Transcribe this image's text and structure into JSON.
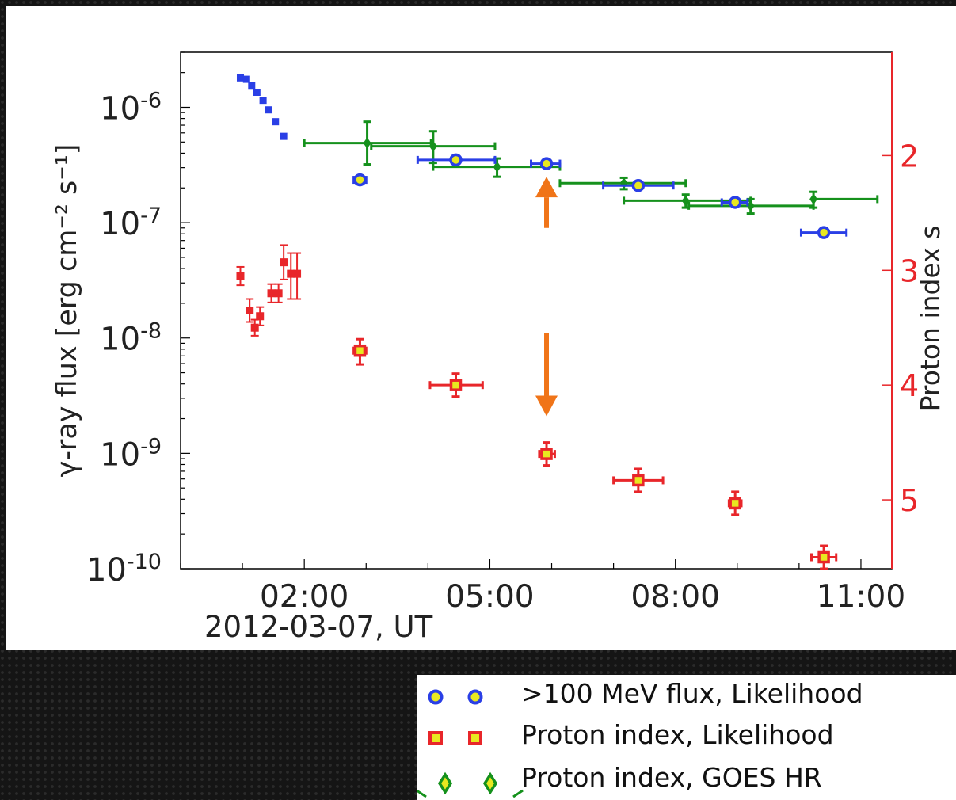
{
  "chart_data": {
    "type": "scatter",
    "title": "",
    "xlabel": "2012-03-07, UT",
    "ylabel": "γ-ray flux [erg cm⁻² s⁻¹]",
    "ylabel_right": "Proton index s",
    "x_ticks": [
      "02:00",
      "05:00",
      "08:00",
      "11:00"
    ],
    "xlim": [
      "2012-03-07T00:00",
      "2012-03-07T11:30"
    ],
    "y_log_ticks": [
      -6,
      -7,
      -8,
      -9,
      -10
    ],
    "ylim": [
      1e-10,
      3e-06
    ],
    "y_right_ticks": [
      "2",
      "3",
      "4",
      "5"
    ],
    "y_right_lim": [
      5.6,
      1.1
    ],
    "colors": {
      "blue": "#2a3fe6",
      "red": "#e8262a",
      "green": "#15911c",
      "orange": "#f07418",
      "yellow": "#e8e820"
    },
    "series": [
      {
        "key": "blue_early",
        "points": [
          {
            "t": "2012-03-07T00:58",
            "y": 1.8e-06
          },
          {
            "t": "2012-03-07T01:04",
            "y": 1.75e-06
          },
          {
            "t": "2012-03-07T01:09",
            "y": 1.55e-06
          },
          {
            "t": "2012-03-07T01:14",
            "y": 1.35e-06
          },
          {
            "t": "2012-03-07T01:20",
            "y": 1.15e-06
          },
          {
            "t": "2012-03-07T01:25",
            "y": 9.5e-07
          },
          {
            "t": "2012-03-07T01:32",
            "y": 7.5e-07
          },
          {
            "t": "2012-03-07T01:40",
            "y": 5.6e-07
          }
        ]
      },
      {
        "name": ">100 MeV flux, Likelihood",
        "key": "blue_circles",
        "points": [
          {
            "t": "2012-03-07T02:54",
            "y": 2.35e-07,
            "t0": "2012-03-07T02:48",
            "t1": "2012-03-07T03:00"
          },
          {
            "t": "2012-03-07T04:27",
            "y": 3.5e-07,
            "t0": "2012-03-07T03:50",
            "t1": "2012-03-07T05:05"
          },
          {
            "t": "2012-03-07T05:55",
            "y": 3.25e-07,
            "t0": "2012-03-07T05:40",
            "t1": "2012-03-07T06:08"
          },
          {
            "t": "2012-03-07T07:24",
            "y": 2.1e-07,
            "t0": "2012-03-07T06:50",
            "t1": "2012-03-07T07:58"
          },
          {
            "t": "2012-03-07T08:58",
            "y": 1.5e-07,
            "t0": "2012-03-07T08:45",
            "t1": "2012-03-07T09:10"
          },
          {
            "t": "2012-03-07T10:24",
            "y": 8.2e-08,
            "t0": "2012-03-07T10:02",
            "t1": "2012-03-07T10:46"
          }
        ]
      },
      {
        "key": "green_bins",
        "points": [
          {
            "t": "2012-03-07T03:01",
            "y": 4.9e-07,
            "t0": "2012-03-07T02:00",
            "t1": "2012-03-07T04:03",
            "ylo": 3.2e-07,
            "yhi": 7.5e-07
          },
          {
            "t": "2012-03-07T04:05",
            "y": 4.6e-07,
            "t0": "2012-03-07T03:05",
            "t1": "2012-03-07T05:05",
            "ylo": 3.3e-07,
            "yhi": 6.2e-07
          },
          {
            "t": "2012-03-07T05:07",
            "y": 3.05e-07,
            "t0": "2012-03-07T04:05",
            "t1": "2012-03-07T06:08",
            "ylo": 2.5e-07,
            "yhi": 3.6e-07
          },
          {
            "t": "2012-03-07T07:10",
            "y": 2.2e-07,
            "t0": "2012-03-07T06:08",
            "t1": "2012-03-07T08:10",
            "ylo": 1.95e-07,
            "yhi": 2.45e-07
          },
          {
            "t": "2012-03-07T08:10",
            "y": 1.55e-07,
            "t0": "2012-03-07T07:10",
            "t1": "2012-03-07T09:13",
            "ylo": 1.35e-07,
            "yhi": 1.75e-07
          },
          {
            "t": "2012-03-07T09:13",
            "y": 1.4e-07,
            "t0": "2012-03-07T08:13",
            "t1": "2012-03-07T10:14",
            "ylo": 1.2e-07,
            "yhi": 1.6e-07
          },
          {
            "t": "2012-03-07T10:14",
            "y": 1.6e-07,
            "t0": "2012-03-07T10:14",
            "t1": "2012-03-07T11:16",
            "ylo": 1.35e-07,
            "yhi": 1.85e-07
          }
        ]
      },
      {
        "key": "red_early",
        "points": [
          {
            "t": "2012-03-07T00:58",
            "s": 3.05,
            "slo": 2.97,
            "shi": 3.13
          },
          {
            "t": "2012-03-07T01:07",
            "s": 3.35,
            "slo": 3.25,
            "shi": 3.45
          },
          {
            "t": "2012-03-07T01:12",
            "s": 3.5,
            "slo": 3.43,
            "shi": 3.57
          },
          {
            "t": "2012-03-07T01:17",
            "s": 3.4,
            "slo": 3.32,
            "shi": 3.48
          },
          {
            "t": "2012-03-07T01:28",
            "s": 3.2,
            "slo": 3.12,
            "shi": 3.28
          },
          {
            "t": "2012-03-07T01:35",
            "s": 3.2,
            "slo": 3.12,
            "shi": 3.28
          },
          {
            "t": "2012-03-07T01:40",
            "s": 2.93,
            "slo": 2.78,
            "shi": 3.08
          },
          {
            "t": "2012-03-07T01:47",
            "s": 3.03,
            "slo": 2.85,
            "shi": 3.25
          },
          {
            "t": "2012-03-07T01:53",
            "s": 3.03,
            "slo": 2.85,
            "shi": 3.25
          }
        ]
      },
      {
        "name": "Proton index, Likelihood",
        "key": "red_squares",
        "points": [
          {
            "t": "2012-03-07T02:54",
            "s": 3.7,
            "t0": "2012-03-07T02:48",
            "t1": "2012-03-07T03:00",
            "slo": 3.6,
            "shi": 3.82
          },
          {
            "t": "2012-03-07T04:27",
            "s": 4.0,
            "t0": "2012-03-07T04:02",
            "t1": "2012-03-07T04:53",
            "slo": 3.9,
            "shi": 4.1
          },
          {
            "t": "2012-03-07T05:55",
            "s": 4.6,
            "t0": "2012-03-07T05:48",
            "t1": "2012-03-07T06:03",
            "slo": 4.5,
            "shi": 4.7
          },
          {
            "t": "2012-03-07T07:24",
            "s": 4.83,
            "t0": "2012-03-07T07:00",
            "t1": "2012-03-07T07:48",
            "slo": 4.73,
            "shi": 4.93
          },
          {
            "t": "2012-03-07T08:58",
            "s": 5.03,
            "t0": "2012-03-07T08:52",
            "t1": "2012-03-07T09:04",
            "slo": 4.93,
            "shi": 5.13
          },
          {
            "t": "2012-03-07T10:24",
            "s": 5.5,
            "t0": "2012-03-07T10:12",
            "t1": "2012-03-07T10:36",
            "slo": 5.4,
            "shi": 5.6
          }
        ]
      },
      {
        "name": "Proton index, GOES HR",
        "key": "green_diamonds",
        "points": []
      }
    ],
    "annotations": [
      {
        "type": "arrow",
        "direction": "up",
        "t": "2012-03-07T05:55",
        "from": 9e-08,
        "to": 2.5e-07
      },
      {
        "type": "arrow",
        "direction": "down",
        "t": "2012-03-07T05:55",
        "from": 1.1e-08,
        "to": 2.1e-09
      }
    ]
  }
}
